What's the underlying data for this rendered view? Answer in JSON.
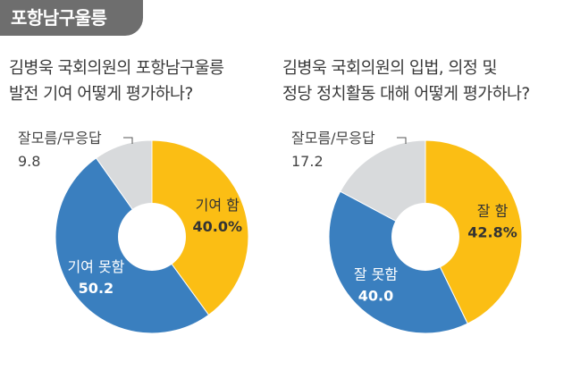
{
  "section_tab": "포항남구울릉",
  "colors": {
    "yellow": "#fbbe14",
    "blue": "#3a7fbf",
    "grey": "#d8dadc",
    "leader": "#555555"
  },
  "chart_data": [
    {
      "type": "pie",
      "title_lines": [
        "김병욱 국회의원의 포항남구울릉",
        "발전 기여 어떻게 평가하나?"
      ],
      "slices": [
        {
          "label": "기여 함",
          "value": 40.0,
          "value_text": "40.0%",
          "color": "yellow"
        },
        {
          "label": "기여 못함",
          "value": 50.2,
          "value_text": "50.2",
          "color": "blue"
        },
        {
          "label": "잘모름/무응답",
          "value": 9.8,
          "value_text": "9.8",
          "color": "grey"
        }
      ]
    },
    {
      "type": "pie",
      "title_lines": [
        "김병욱 국회의원의 입법, 의정 및",
        "정당 정치활동 대해 어떻게 평가하나?"
      ],
      "slices": [
        {
          "label": "잘 함",
          "value": 42.8,
          "value_text": "42.8%",
          "color": "yellow"
        },
        {
          "label": "잘 못함",
          "value": 40.0,
          "value_text": "40.0",
          "color": "blue"
        },
        {
          "label": "잘모름/무응답",
          "value": 17.2,
          "value_text": "17.2",
          "color": "grey"
        }
      ]
    }
  ]
}
